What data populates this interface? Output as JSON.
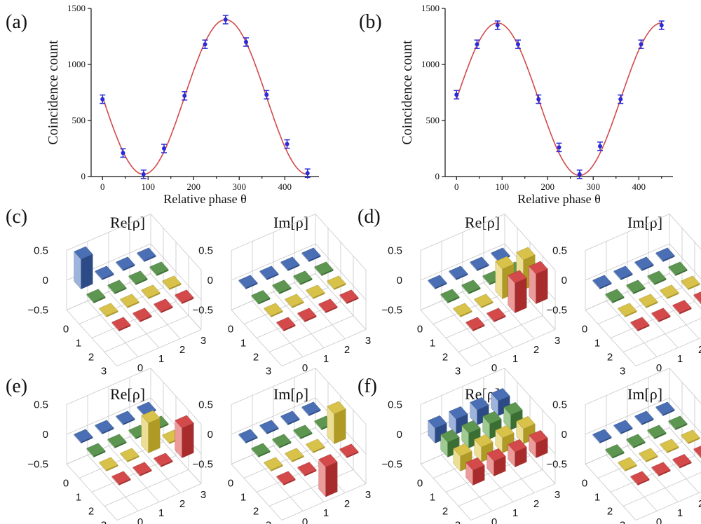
{
  "chart_data": [
    {
      "panel": "(a)",
      "type": "line",
      "xlabel": "Relative phase θ",
      "ylabel": "Coincidence count",
      "xlim": [
        -25,
        475
      ],
      "ylim": [
        0,
        1500
      ],
      "xticks": [
        "0",
        "100",
        "200",
        "300",
        "400"
      ],
      "yticks": [
        "0",
        "500",
        "1000",
        "1500"
      ],
      "x": [
        0,
        45,
        90,
        135,
        180,
        225,
        270,
        315,
        360,
        405,
        450
      ],
      "values": [
        690,
        210,
        20,
        250,
        720,
        1180,
        1400,
        1200,
        730,
        290,
        30
      ],
      "fit": {
        "amplitude": 690,
        "offset": 710,
        "phase_deg": 0,
        "sign": -1
      }
    },
    {
      "panel": "(b)",
      "type": "line",
      "xlabel": "Relative phase θ",
      "ylabel": "Coincidence count",
      "xlim": [
        -25,
        475
      ],
      "ylim": [
        0,
        1500
      ],
      "xticks": [
        "0",
        "100",
        "200",
        "300",
        "400"
      ],
      "yticks": [
        "0",
        "500",
        "1000",
        "1500"
      ],
      "x": [
        0,
        45,
        90,
        135,
        180,
        225,
        270,
        315,
        360,
        405,
        450
      ],
      "values": [
        730,
        1180,
        1350,
        1180,
        690,
        260,
        20,
        270,
        690,
        1180,
        1350
      ],
      "fit": {
        "amplitude": 680,
        "offset": 690,
        "phase_deg": 0,
        "sign": 1
      }
    },
    {
      "panel": "(c)",
      "type": "bar3d",
      "titles": [
        "Re[ρ]",
        "Im[ρ]"
      ],
      "zticks": [
        "0.5",
        "0",
        "−0.5"
      ],
      "zlim": [
        -0.5,
        0.5
      ],
      "indices": [
        "0",
        "1",
        "2",
        "3"
      ],
      "re": [
        [
          0.5,
          0.02,
          0,
          0
        ],
        [
          0.02,
          0,
          0,
          0
        ],
        [
          0,
          0,
          0,
          0
        ],
        [
          0,
          0,
          0,
          0
        ]
      ],
      "im": [
        [
          0,
          0.02,
          0,
          0
        ],
        [
          -0.02,
          0,
          0,
          0
        ],
        [
          0,
          0,
          0,
          0
        ],
        [
          0,
          0,
          0,
          0
        ]
      ]
    },
    {
      "panel": "(d)",
      "type": "bar3d",
      "titles": [
        "Re[ρ]",
        "Im[ρ]"
      ],
      "zticks": [
        "0.5",
        "0",
        "−0.5"
      ],
      "zlim": [
        -0.5,
        0.5
      ],
      "indices": [
        "0",
        "1",
        "2",
        "3"
      ],
      "re": [
        [
          0,
          0,
          0,
          0
        ],
        [
          0,
          0,
          0,
          0
        ],
        [
          0,
          0,
          0.5,
          0.5
        ],
        [
          0,
          0,
          0.5,
          0.5
        ]
      ],
      "im": [
        [
          0,
          0,
          0,
          0
        ],
        [
          0,
          0,
          0,
          0
        ],
        [
          0,
          0,
          0,
          0.02
        ],
        [
          0,
          0,
          -0.02,
          0
        ]
      ]
    },
    {
      "panel": "(e)",
      "type": "bar3d",
      "titles": [
        "Re[ρ]",
        "Im[ρ]"
      ],
      "zticks": [
        "0.5",
        "0",
        "−0.5"
      ],
      "zlim": [
        -0.5,
        0.5
      ],
      "indices": [
        "0",
        "1",
        "2",
        "3"
      ],
      "re": [
        [
          0,
          0,
          0,
          0
        ],
        [
          0,
          0,
          0,
          0
        ],
        [
          0,
          0,
          0.5,
          0
        ],
        [
          0,
          0,
          0,
          0.5
        ]
      ],
      "im": [
        [
          0,
          0,
          0,
          0
        ],
        [
          0,
          0,
          0,
          0
        ],
        [
          0,
          0,
          0,
          0.5
        ],
        [
          0,
          0,
          -0.5,
          0
        ]
      ]
    },
    {
      "panel": "(f)",
      "type": "bar3d",
      "titles": [
        "Re[ρ]",
        "Im[ρ]"
      ],
      "zticks": [
        "0.5",
        "0",
        "−0.5"
      ],
      "zlim": [
        -0.5,
        0.5
      ],
      "indices": [
        "0",
        "1",
        "2",
        "3"
      ],
      "re": [
        [
          0.25,
          0.25,
          0.25,
          0.25
        ],
        [
          0.25,
          0.25,
          0.25,
          0.25
        ],
        [
          0.25,
          0.25,
          0.25,
          0.25
        ],
        [
          0.25,
          0.25,
          0.25,
          0.25
        ]
      ],
      "im": [
        [
          0,
          0.01,
          0,
          0
        ],
        [
          -0.01,
          0,
          0,
          0
        ],
        [
          0,
          0,
          0,
          0.01
        ],
        [
          0,
          0,
          -0.01,
          0
        ]
      ]
    }
  ],
  "colors": {
    "fit_line": "#d24a4a",
    "marker": "#2a2ad6",
    "rows": [
      "#4a6fb5",
      "#5c9650",
      "#d8c24a",
      "#d44a4a"
    ],
    "rows_light": [
      "#9fb4dc",
      "#9fca92",
      "#ecdf95",
      "#ec9b9b"
    ],
    "rows_dark": [
      "#2c4a86",
      "#3b6e33",
      "#b09a26",
      "#a82c2c"
    ]
  }
}
